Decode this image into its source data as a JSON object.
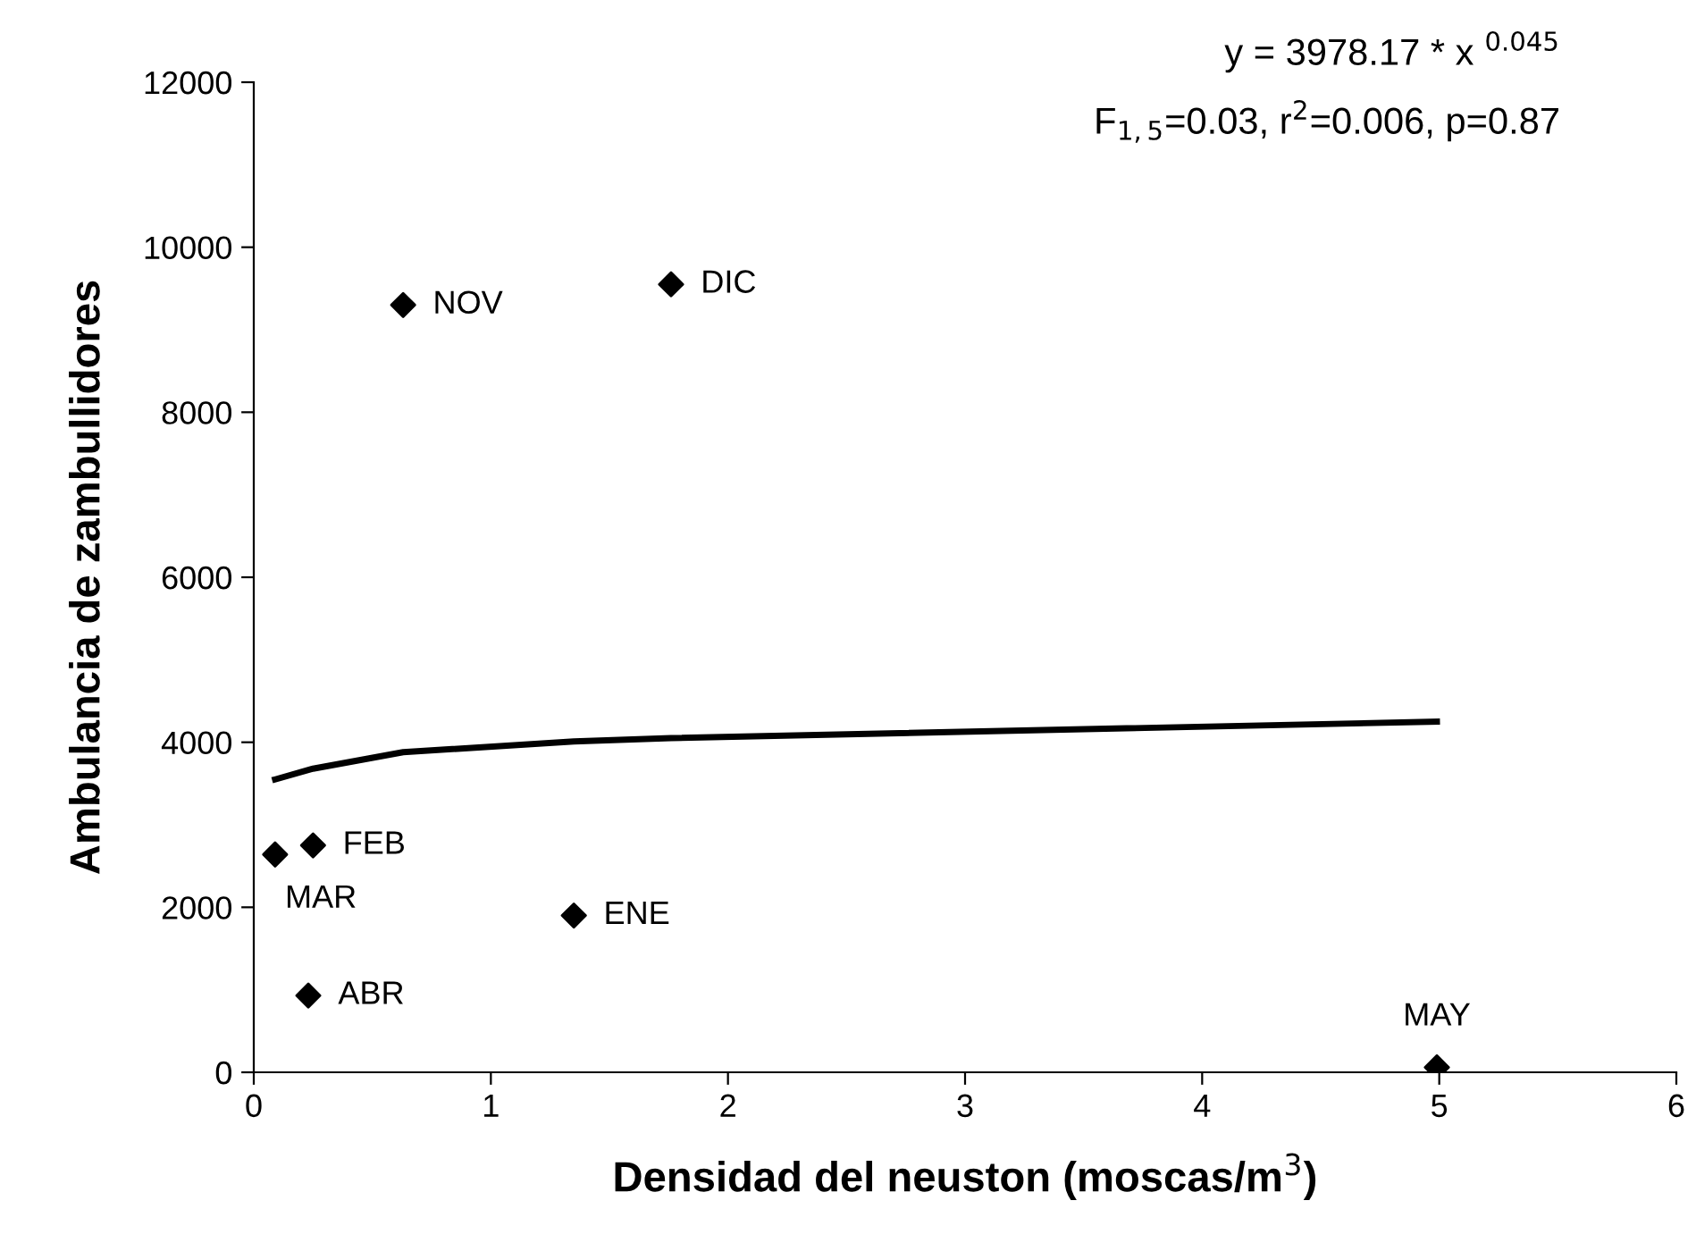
{
  "chart_data": {
    "type": "scatter",
    "xlabel": "Densidad del neuston (moscas/m$^{3}$)",
    "ylabel": "Ambulancia de zambullidores",
    "series": [
      {
        "color": "#000000",
        "marker": "diamond",
        "x": [
          0.63,
          1.76,
          0.25,
          0.09,
          0.23,
          1.35,
          4.99
        ],
        "values": [
          9300,
          9550,
          2750,
          2640,
          930,
          1900,
          60
        ]
      },
      {
        "type": "line",
        "color": "#000000",
        "marker": "none",
        "line_style": "solid",
        "x": [
          0.09,
          0.25,
          0.63,
          1.35,
          1.76,
          4.99
        ],
        "values": [
          3550,
          3680,
          3880,
          4010,
          4050,
          4250
        ]
      }
    ],
    "xlim": [
      0,
      6
    ],
    "xticks": [
      0,
      1,
      2,
      3,
      4,
      5,
      6
    ],
    "ylim": [
      0,
      12000
    ],
    "yticks": [
      0,
      2000,
      4000,
      6000,
      8000,
      10000,
      12000
    ],
    "grid": false,
    "legend": false,
    "annotations": [
      {
        "text": "NOV",
        "x": 0.63,
        "y": 9300
      },
      {
        "text": "DIC",
        "x": 1.76,
        "y": 9550
      },
      {
        "text": "FEB",
        "x": 0.25,
        "y": 2750
      },
      {
        "text": "MAR",
        "x": 0.09,
        "y": 2640
      },
      {
        "text": "ABR",
        "x": 0.23,
        "y": 930
      },
      {
        "text": "ENE",
        "x": 1.35,
        "y": 1900
      },
      {
        "text": "MAY",
        "x": 4.99,
        "y": 65
      },
      "y = 3978.17 * x $^{0.045}$",
      "F$_{1,5}$=0.03, r$^{2}$=0.006, p=0.87"
    ]
  }
}
